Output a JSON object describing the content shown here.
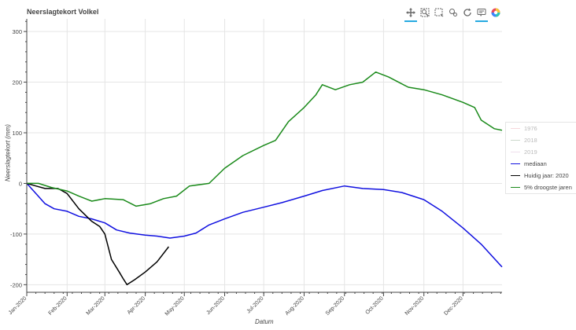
{
  "colors": {
    "background": "#ffffff",
    "grid": "#e5e5e5",
    "axis": "#444444"
  },
  "toolbar": {
    "tools": [
      {
        "name": "pan-tool",
        "icon": "move-arrows-icon",
        "active": true
      },
      {
        "name": "box-zoom-tool",
        "icon": "box-zoom-icon",
        "active": false
      },
      {
        "name": "box-select-tool",
        "icon": "box-select-icon",
        "active": false
      },
      {
        "name": "zoom-in-tool",
        "icon": "zoom-icon",
        "active": false
      },
      {
        "name": "reset-tool",
        "icon": "reset-icon",
        "active": false
      },
      {
        "name": "hover-tool",
        "icon": "hover-icon",
        "active": true
      },
      {
        "name": "bokeh-logo",
        "icon": "bokeh-logo-icon",
        "active": false
      }
    ]
  },
  "chart_data": {
    "type": "line",
    "title": "Neerslagtekort Volkel",
    "xlabel": "Datum",
    "ylabel": "Neerslagtekort (mm)",
    "xlim": [
      "2020-01-01",
      "2020-12-31"
    ],
    "ylim": [
      -215,
      325
    ],
    "yticks": [
      -200,
      -100,
      0,
      100,
      200,
      300
    ],
    "xticks": [
      {
        "date": "2020-01-01",
        "label": "Jan-2020"
      },
      {
        "date": "2020-02-01",
        "label": "Feb-2020"
      },
      {
        "date": "2020-03-01",
        "label": "Mar-2020"
      },
      {
        "date": "2020-04-01",
        "label": "Apr-2020"
      },
      {
        "date": "2020-05-01",
        "label": "May-2020"
      },
      {
        "date": "2020-06-01",
        "label": "Jun-2020"
      },
      {
        "date": "2020-07-01",
        "label": "Jul-2020"
      },
      {
        "date": "2020-08-01",
        "label": "Aug-2020"
      },
      {
        "date": "2020-09-01",
        "label": "Sep-2020"
      },
      {
        "date": "2020-10-01",
        "label": "Oct-2020"
      },
      {
        "date": "2020-11-01",
        "label": "Nov-2020"
      },
      {
        "date": "2020-12-01",
        "label": "Dec-2020"
      }
    ],
    "grid": true,
    "legend_position": "right",
    "series": [
      {
        "name": "1976",
        "color": "#e8909b",
        "muted": true,
        "points": []
      },
      {
        "name": "2018",
        "color": "#6b8e6b",
        "muted": true,
        "points": []
      },
      {
        "name": "2019",
        "color": "#d4a7c8",
        "muted": true,
        "points": []
      },
      {
        "name": "mediaan",
        "color": "#1010e0",
        "muted": false,
        "points": [
          [
            "2020-01-01",
            0
          ],
          [
            "2020-01-08",
            -20
          ],
          [
            "2020-01-15",
            -40
          ],
          [
            "2020-01-22",
            -50
          ],
          [
            "2020-02-01",
            -55
          ],
          [
            "2020-02-10",
            -65
          ],
          [
            "2020-02-20",
            -70
          ],
          [
            "2020-03-01",
            -78
          ],
          [
            "2020-03-10",
            -92
          ],
          [
            "2020-03-20",
            -98
          ],
          [
            "2020-04-01",
            -102
          ],
          [
            "2020-04-10",
            -104
          ],
          [
            "2020-04-20",
            -108
          ],
          [
            "2020-05-01",
            -104
          ],
          [
            "2020-05-10",
            -98
          ],
          [
            "2020-05-20",
            -82
          ],
          [
            "2020-06-01",
            -70
          ],
          [
            "2020-06-15",
            -57
          ],
          [
            "2020-07-01",
            -47
          ],
          [
            "2020-07-15",
            -38
          ],
          [
            "2020-08-01",
            -25
          ],
          [
            "2020-08-15",
            -14
          ],
          [
            "2020-09-01",
            -5
          ],
          [
            "2020-09-15",
            -10
          ],
          [
            "2020-10-01",
            -12
          ],
          [
            "2020-10-15",
            -18
          ],
          [
            "2020-11-01",
            -32
          ],
          [
            "2020-11-15",
            -55
          ],
          [
            "2020-12-01",
            -88
          ],
          [
            "2020-12-15",
            -120
          ],
          [
            "2020-12-31",
            -165
          ]
        ]
      },
      {
        "name": "Huidig jaar: 2020",
        "color": "#000000",
        "muted": false,
        "points": [
          [
            "2020-01-01",
            0
          ],
          [
            "2020-01-08",
            -5
          ],
          [
            "2020-01-15",
            -10
          ],
          [
            "2020-01-25",
            -10
          ],
          [
            "2020-02-01",
            -20
          ],
          [
            "2020-02-10",
            -50
          ],
          [
            "2020-02-20",
            -75
          ],
          [
            "2020-02-26",
            -85
          ],
          [
            "2020-03-01",
            -100
          ],
          [
            "2020-03-06",
            -150
          ],
          [
            "2020-03-12",
            -175
          ],
          [
            "2020-03-15",
            -188
          ],
          [
            "2020-03-18",
            -200
          ],
          [
            "2020-03-24",
            -190
          ],
          [
            "2020-04-01",
            -175
          ],
          [
            "2020-04-10",
            -155
          ],
          [
            "2020-04-19",
            -125
          ]
        ]
      },
      {
        "name": "5% droogste jaren",
        "color": "#1a8a1a",
        "muted": false,
        "points": [
          [
            "2020-01-01",
            0
          ],
          [
            "2020-01-10",
            0
          ],
          [
            "2020-01-20",
            -8
          ],
          [
            "2020-02-01",
            -15
          ],
          [
            "2020-02-10",
            -25
          ],
          [
            "2020-02-20",
            -35
          ],
          [
            "2020-03-01",
            -30
          ],
          [
            "2020-03-15",
            -32
          ],
          [
            "2020-03-25",
            -45
          ],
          [
            "2020-04-05",
            -40
          ],
          [
            "2020-04-15",
            -30
          ],
          [
            "2020-04-25",
            -25
          ],
          [
            "2020-05-05",
            -5
          ],
          [
            "2020-05-20",
            0
          ],
          [
            "2020-06-01",
            30
          ],
          [
            "2020-06-15",
            55
          ],
          [
            "2020-07-01",
            75
          ],
          [
            "2020-07-10",
            85
          ],
          [
            "2020-07-20",
            122
          ],
          [
            "2020-08-01",
            150
          ],
          [
            "2020-08-10",
            175
          ],
          [
            "2020-08-15",
            195
          ],
          [
            "2020-08-25",
            185
          ],
          [
            "2020-09-05",
            195
          ],
          [
            "2020-09-15",
            200
          ],
          [
            "2020-09-25",
            220
          ],
          [
            "2020-10-05",
            210
          ],
          [
            "2020-10-20",
            190
          ],
          [
            "2020-11-01",
            185
          ],
          [
            "2020-11-15",
            175
          ],
          [
            "2020-12-01",
            160
          ],
          [
            "2020-12-10",
            150
          ],
          [
            "2020-12-15",
            125
          ],
          [
            "2020-12-25",
            108
          ],
          [
            "2020-12-31",
            105
          ]
        ]
      }
    ]
  }
}
